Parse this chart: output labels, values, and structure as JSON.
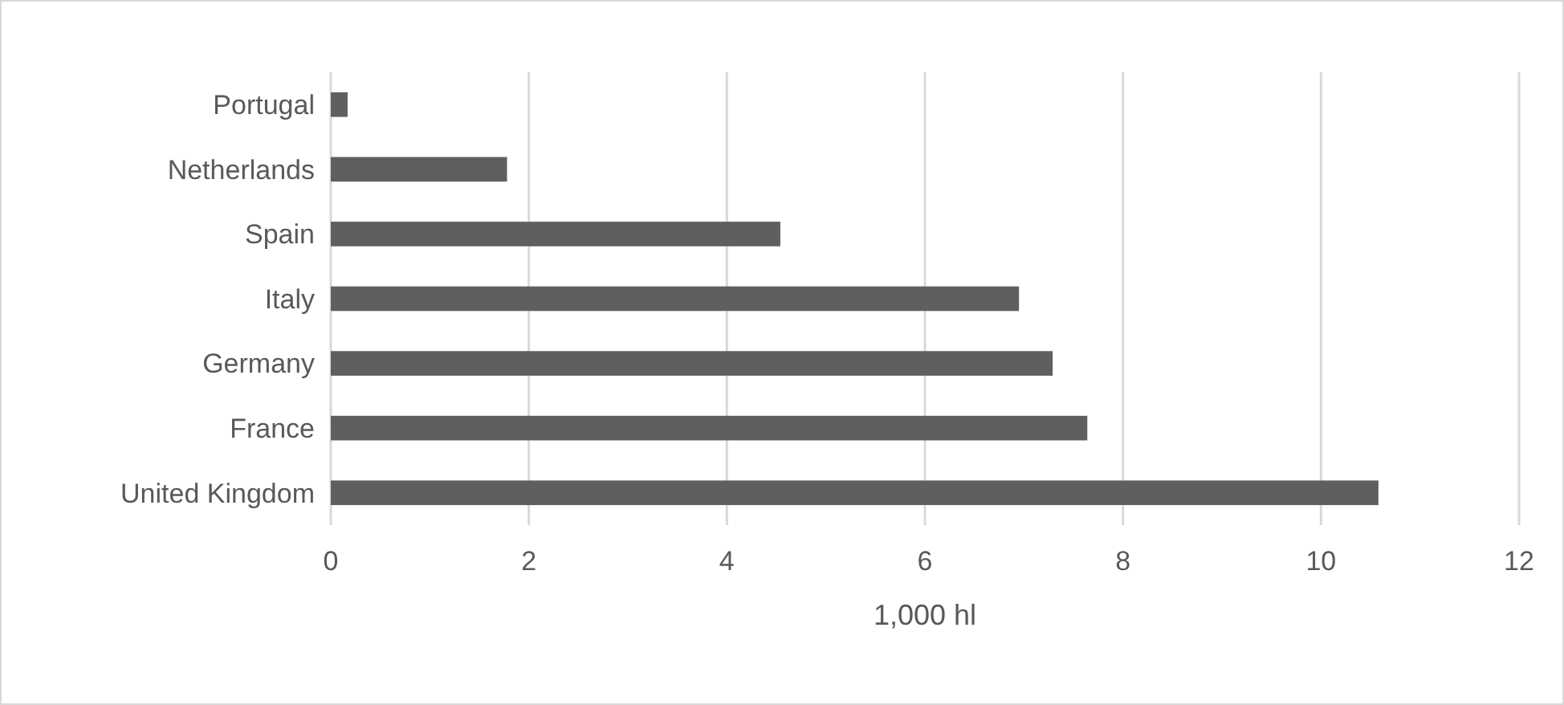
{
  "chart_data": {
    "type": "bar",
    "orientation": "horizontal",
    "xlabel": "1,000 hl",
    "categories": [
      "Portugal",
      "Netherlands",
      "Spain",
      "Italy",
      "Germany",
      "France",
      "United Kingdom"
    ],
    "values": [
      0.17,
      1.78,
      4.54,
      6.95,
      7.29,
      7.64,
      10.58
    ],
    "color": "#5f5f5f",
    "xlim": [
      0,
      12
    ],
    "xticks": [
      0,
      2,
      4,
      6,
      8,
      10,
      12
    ],
    "grid": "x"
  }
}
